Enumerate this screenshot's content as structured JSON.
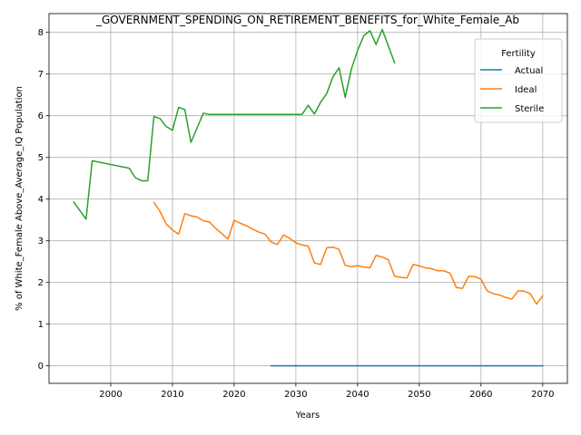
{
  "chart_data": {
    "type": "line",
    "title": "_GOVERNMENT_SPENDING_ON_RETIREMENT_BENEFITS_for_White_Female_Ab",
    "xlabel": "Years",
    "ylabel": "% of White_Female Above_Average_IQ Population",
    "xlim": [
      1990,
      2074
    ],
    "ylim": [
      -0.42,
      8.45
    ],
    "xticks": [
      2000,
      2010,
      2020,
      2030,
      2040,
      2050,
      2060,
      2070
    ],
    "yticks": [
      0,
      1,
      2,
      3,
      4,
      5,
      6,
      7,
      8
    ],
    "grid": true,
    "legend": {
      "title": "Fertility",
      "placement": "top-right"
    },
    "series": [
      {
        "name": "Actual",
        "color": "#1f77b4",
        "x": [
          2026,
          2070
        ],
        "y": [
          0.0,
          0.0
        ]
      },
      {
        "name": "Ideal",
        "color": "#ff7f0e",
        "x": [
          2007,
          2008,
          2009,
          2010,
          2011,
          2012,
          2013,
          2014,
          2015,
          2016,
          2017,
          2018,
          2019,
          2020,
          2021,
          2022,
          2023,
          2024,
          2025,
          2026,
          2027,
          2028,
          2029,
          2030,
          2031,
          2032,
          2033,
          2034,
          2035,
          2036,
          2037,
          2038,
          2039,
          2040,
          2041,
          2042,
          2043,
          2044,
          2045,
          2046,
          2047,
          2048,
          2049,
          2050,
          2051,
          2052,
          2053,
          2054,
          2055,
          2056,
          2057,
          2058,
          2059,
          2060,
          2061,
          2062,
          2063,
          2064,
          2065,
          2066,
          2067,
          2068,
          2069,
          2070
        ],
        "y": [
          3.92,
          3.7,
          3.4,
          3.26,
          3.16,
          3.65,
          3.6,
          3.57,
          3.48,
          3.45,
          3.3,
          3.17,
          3.04,
          3.49,
          3.42,
          3.36,
          3.28,
          3.21,
          3.16,
          2.97,
          2.91,
          3.14,
          3.06,
          2.95,
          2.9,
          2.87,
          2.47,
          2.43,
          2.83,
          2.85,
          2.79,
          2.41,
          2.38,
          2.4,
          2.37,
          2.35,
          2.65,
          2.61,
          2.54,
          2.15,
          2.12,
          2.11,
          2.43,
          2.4,
          2.35,
          2.33,
          2.28,
          2.28,
          2.22,
          1.88,
          1.86,
          2.15,
          2.14,
          2.08,
          1.8,
          1.73,
          1.7,
          1.64,
          1.6,
          1.8,
          1.79,
          1.73,
          1.48,
          1.68
        ]
      },
      {
        "name": "Sterile",
        "color": "#2ca02c",
        "x": [
          1994,
          1996,
          1997,
          2003,
          2004,
          2005,
          2006,
          2007,
          2008,
          2009,
          2010,
          2011,
          2012,
          2013,
          2015,
          2016,
          2031,
          2032,
          2033,
          2034,
          2035,
          2036,
          2037,
          2038,
          2039,
          2040,
          2041,
          2042,
          2043,
          2044,
          2046
        ],
        "y": [
          3.93,
          3.52,
          4.92,
          4.74,
          4.51,
          4.44,
          4.44,
          5.98,
          5.93,
          5.74,
          5.65,
          6.2,
          6.15,
          5.36,
          6.06,
          6.03,
          6.03,
          6.25,
          6.04,
          6.32,
          6.53,
          6.93,
          7.15,
          6.44,
          7.12,
          7.56,
          7.92,
          8.04,
          7.71,
          8.07,
          7.27
        ]
      }
    ]
  }
}
